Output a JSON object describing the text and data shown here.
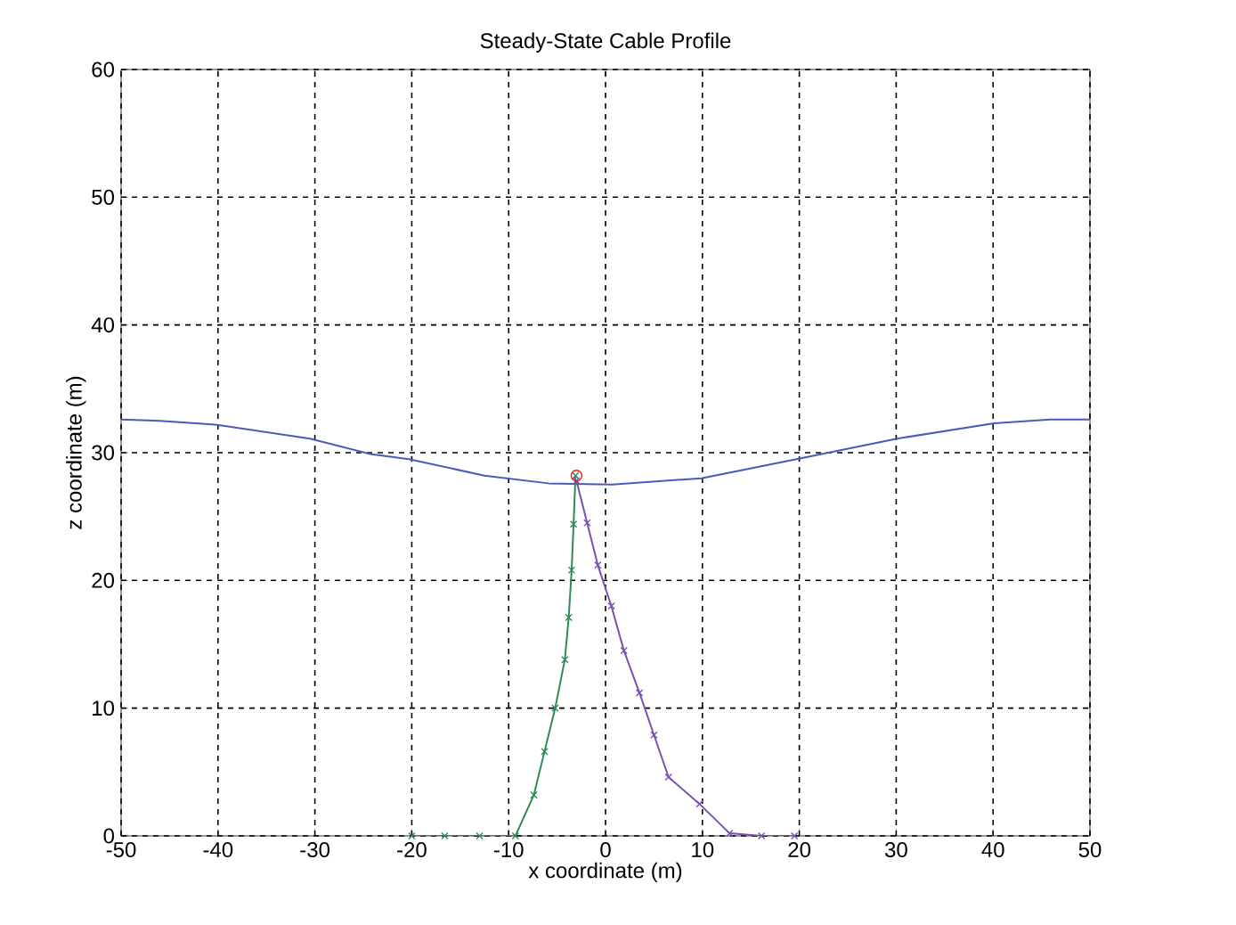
{
  "chart_data": {
    "type": "line",
    "title": "Steady-State Cable Profile",
    "xlabel": "x coordinate (m)",
    "ylabel": "z coordinate (m)",
    "xlim": [
      -50,
      50
    ],
    "ylim": [
      0,
      60
    ],
    "xticks": [
      -50,
      -40,
      -30,
      -20,
      -10,
      0,
      10,
      20,
      30,
      40,
      50
    ],
    "yticks": [
      0,
      10,
      20,
      30,
      40,
      50,
      60
    ],
    "grid": true,
    "series": [
      {
        "color": "#4a5ab8",
        "marker": "none",
        "x": [
          -50,
          -46,
          -40.3,
          -30.5,
          -24.3,
          -20.3,
          -12.5,
          -5.9,
          0.7,
          9.9,
          20.4,
          30.1,
          40.1,
          45.9,
          50
        ],
        "values": [
          32.6,
          32.5,
          32.2,
          31.1,
          29.9,
          29.5,
          28.2,
          27.6,
          27.5,
          28.0,
          29.6,
          31.1,
          32.3,
          32.6,
          32.6
        ]
      },
      {
        "color": "#2e8b57",
        "marker": "cross",
        "x": [
          -20,
          -16.6,
          -13,
          -9.3,
          -7.4,
          -6.3,
          -5.2,
          -4.2,
          -3.8,
          -3.5,
          -3.3,
          -3.1
        ],
        "values": [
          0,
          0,
          0,
          0,
          3.2,
          6.6,
          10,
          13.8,
          17.1,
          20.8,
          24.4,
          28.2
        ]
      },
      {
        "color": "#7a50b0",
        "marker": "cross",
        "x": [
          -3.0,
          -1.9,
          -0.8,
          0.6,
          1.9,
          3.5,
          5.0,
          6.5,
          9.7,
          12.8,
          16.1,
          19.5
        ],
        "values": [
          27.8,
          24.5,
          21.2,
          18.0,
          14.5,
          11.2,
          7.9,
          4.6,
          2.5,
          0.2,
          0,
          0
        ]
      },
      {
        "type": "scatter",
        "color": "#e02020",
        "marker": "circle",
        "x": [
          -3.0
        ],
        "values": [
          28.2
        ]
      }
    ]
  }
}
